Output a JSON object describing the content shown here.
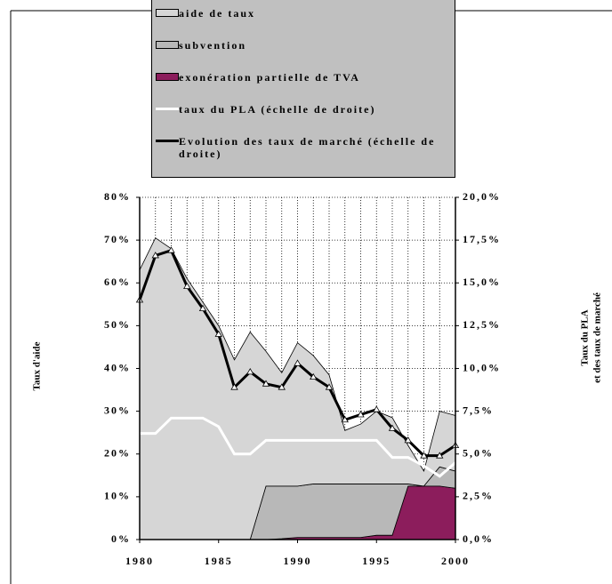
{
  "chart_data": {
    "type": "area",
    "y_label": "Taux d'aide",
    "y2_label": [
      "Taux du PLA",
      "et des taux de marché"
    ],
    "x": [
      1980,
      1981,
      1982,
      1983,
      1984,
      1985,
      1986,
      1987,
      1988,
      1989,
      1990,
      1991,
      1992,
      1993,
      1994,
      1995,
      1996,
      1997,
      1998,
      1999,
      2000
    ],
    "xlim": [
      1980,
      2000
    ],
    "xticks": [
      1980,
      1985,
      1990,
      1995,
      2000
    ],
    "xgrid": [
      1980,
      1981,
      1982,
      1983,
      1984,
      1985,
      1986,
      1987,
      1988,
      1989,
      1990,
      1991,
      1992,
      1993,
      1994,
      1995,
      1996,
      1997,
      1998,
      1999,
      2000
    ],
    "ylim": [
      0,
      80
    ],
    "yticks": [
      {
        "value": 0,
        "label": "0%"
      },
      {
        "value": 10,
        "label": "10%"
      },
      {
        "value": 20,
        "label": "20%"
      },
      {
        "value": 30,
        "label": "30%"
      },
      {
        "value": 40,
        "label": "40%"
      },
      {
        "value": 50,
        "label": "50%"
      },
      {
        "value": 60,
        "label": "60%"
      },
      {
        "value": 70,
        "label": "70%"
      },
      {
        "value": 80,
        "label": "80%"
      }
    ],
    "y2lim": [
      0,
      20
    ],
    "y2ticks": [
      {
        "value": 0,
        "label": "0,0%"
      },
      {
        "value": 2.5,
        "label": "2,5%"
      },
      {
        "value": 5,
        "label": "5,0%"
      },
      {
        "value": 7.5,
        "label": "7,5%"
      },
      {
        "value": 10,
        "label": "10,0%"
      },
      {
        "value": 12.5,
        "label": "12,5%"
      },
      {
        "value": 15,
        "label": "15,0%"
      },
      {
        "value": 17.5,
        "label": "17,5%"
      },
      {
        "value": 20,
        "label": "20,0%"
      }
    ],
    "grid": true,
    "series": [
      {
        "name": "aide de taux",
        "kind": "area",
        "color": "#d6d6d6",
        "values": [
          63,
          70.5,
          68,
          61,
          55.5,
          50,
          42,
          48.5,
          31.5,
          26.5,
          33.5,
          30,
          25.5,
          12.5,
          14,
          17,
          15.5,
          9,
          3.5,
          13,
          13
        ]
      },
      {
        "name": "subvention",
        "kind": "area",
        "color": "#b8b8b8",
        "values": [
          0,
          0,
          0,
          0,
          0,
          0,
          0,
          0,
          12.5,
          12.3,
          12,
          12.5,
          12.5,
          12.5,
          12.5,
          12,
          12,
          0.5,
          0,
          4.5,
          4
        ]
      },
      {
        "name": "exonération partielle de TVA",
        "kind": "area",
        "color": "#8c1d5c",
        "values": [
          0,
          0,
          0,
          0,
          0,
          0,
          0,
          0,
          0,
          0.2,
          0.5,
          0.5,
          0.5,
          0.5,
          0.5,
          1,
          1,
          12.5,
          12.5,
          12.5,
          12
        ]
      },
      {
        "name": "taux du PLA (échelle de droite)",
        "kind": "line",
        "axis": "y2",
        "color": "#ffffff",
        "values": [
          6.2,
          6.2,
          7.1,
          7.1,
          7.1,
          6.6,
          5.0,
          5.0,
          5.8,
          5.8,
          5.8,
          5.8,
          5.8,
          5.8,
          5.8,
          5.8,
          4.8,
          4.8,
          4.3,
          3.7,
          4.5
        ]
      },
      {
        "name": "Evolution des taux de marché (échelle de droite)",
        "kind": "line",
        "axis": "y2",
        "color": "#000000",
        "marker": "triangle",
        "values": [
          14.0,
          16.6,
          16.9,
          14.8,
          13.5,
          12.0,
          8.9,
          9.8,
          9.1,
          8.9,
          10.3,
          9.5,
          8.9,
          7.0,
          7.3,
          7.6,
          6.5,
          5.8,
          4.9,
          4.9,
          5.5
        ]
      }
    ]
  }
}
